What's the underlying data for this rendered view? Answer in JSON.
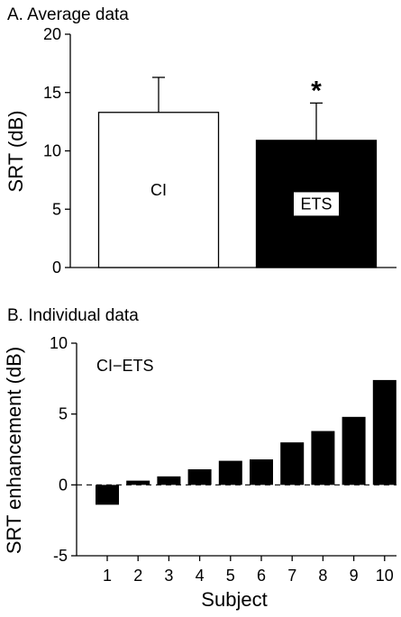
{
  "colors": {
    "open_bar": "#ffffff",
    "filled_bar": "#000000",
    "axis": "#000000"
  },
  "chart_data": [
    {
      "type": "bar",
      "title": "A. Average data",
      "xlabel": "",
      "ylabel": "SRT (dB)",
      "ylim": [
        0,
        20
      ],
      "yticks": [
        "0",
        "5",
        "10",
        "15",
        "20"
      ],
      "categories": [
        "CI",
        "ETS"
      ],
      "values": [
        13.3,
        10.9
      ],
      "error_plus": [
        3.0,
        3.2
      ],
      "bar_colors": [
        "#ffffff",
        "#000000"
      ],
      "significance": "*",
      "significance_on": "ETS",
      "grid": false
    },
    {
      "type": "bar",
      "title": "B. Individual data",
      "annotation": "CI−ETS",
      "xlabel": "Subject",
      "ylabel": "SRT enhancement (dB)",
      "ylim": [
        -5,
        10
      ],
      "yticks": [
        "-5",
        "0",
        "5",
        "10"
      ],
      "categories": [
        "1",
        "2",
        "3",
        "4",
        "5",
        "6",
        "7",
        "8",
        "9",
        "10"
      ],
      "values": [
        -1.4,
        0.3,
        0.6,
        1.1,
        1.7,
        1.8,
        3.0,
        3.8,
        4.8,
        7.4
      ],
      "zero_line": "dashed",
      "grid": false
    }
  ]
}
